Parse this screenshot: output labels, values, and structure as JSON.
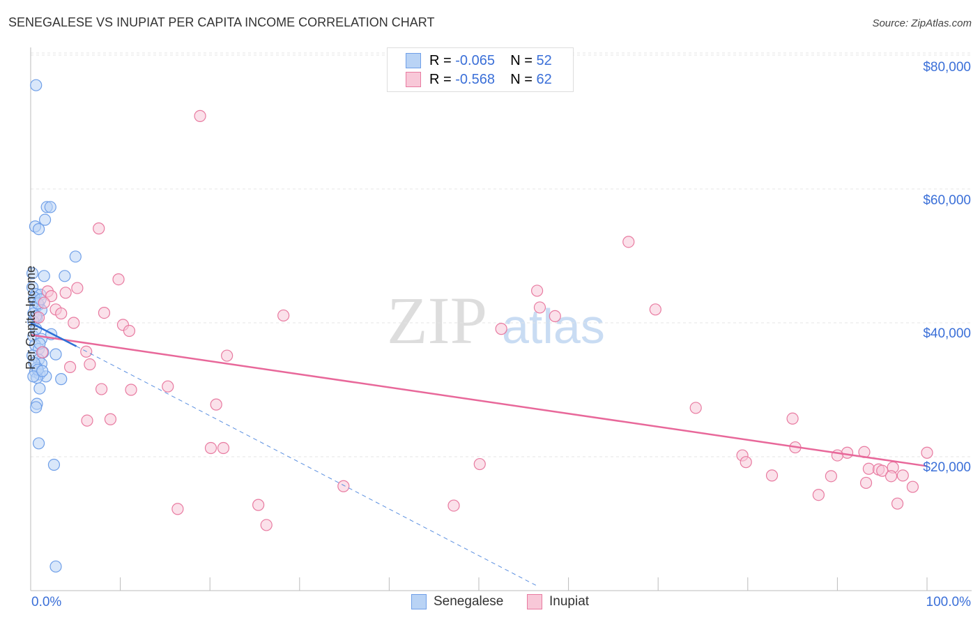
{
  "chart_data": {
    "type": "scatter",
    "title": "SENEGALESE VS INUPIAT PER CAPITA INCOME CORRELATION CHART",
    "source": "Source: ZipAtlas.com",
    "ylabel": "Per Capita Income",
    "xlim": [
      0,
      100
    ],
    "ylim": [
      0,
      82000
    ],
    "x_tick_labels": [
      "0.0%",
      "100.0%"
    ],
    "y_ticks": [
      20000,
      40000,
      60000,
      80000
    ],
    "y_tick_labels": [
      "$20,000",
      "$40,000",
      "$60,000",
      "$80,000"
    ],
    "legend": [
      {
        "name": "Senegalese",
        "r_label": "R = ",
        "r": "-0.065",
        "n_label": "N = ",
        "n": "52",
        "color": "#6f9fe8",
        "fill": "#b9d3f5"
      },
      {
        "name": "Inupiat",
        "r_label": "R = ",
        "r": "-0.568",
        "n_label": "N = ",
        "n": "62",
        "color": "#e87aa0",
        "fill": "#f8c8d8"
      }
    ],
    "series": [
      {
        "name": "Senegalese",
        "points": [
          [
            0.6,
            75.5
          ],
          [
            1.8,
            57.3
          ],
          [
            2.2,
            57.3
          ],
          [
            1.6,
            55.4
          ],
          [
            0.5,
            54.4
          ],
          [
            0.9,
            54.0
          ],
          [
            5.0,
            49.9
          ],
          [
            0.2,
            47.4
          ],
          [
            1.5,
            47.0
          ],
          [
            3.8,
            47.0
          ],
          [
            0.2,
            45.3
          ],
          [
            0.6,
            44.3
          ],
          [
            1.1,
            44.2
          ],
          [
            0.5,
            43.2
          ],
          [
            0.9,
            42.7
          ],
          [
            0.5,
            42.2
          ],
          [
            1.2,
            41.9
          ],
          [
            0.3,
            41.4
          ],
          [
            0.7,
            40.8
          ],
          [
            2.3,
            38.3
          ],
          [
            0.3,
            38.0
          ],
          [
            1.2,
            37.6
          ],
          [
            0.5,
            36.7
          ],
          [
            0.9,
            36.1
          ],
          [
            1.4,
            35.6
          ],
          [
            2.8,
            35.3
          ],
          [
            0.2,
            35.1
          ],
          [
            0.9,
            34.5
          ],
          [
            1.2,
            33.9
          ],
          [
            0.7,
            33.3
          ],
          [
            0.5,
            32.7
          ],
          [
            1.0,
            32.3
          ],
          [
            1.7,
            32.0
          ],
          [
            3.4,
            31.6
          ],
          [
            0.7,
            31.8
          ],
          [
            1.0,
            30.2
          ],
          [
            0.7,
            27.9
          ],
          [
            0.6,
            27.4
          ],
          [
            0.9,
            22.0
          ],
          [
            2.6,
            18.8
          ],
          [
            2.8,
            3.6
          ],
          [
            0.4,
            43.8
          ],
          [
            0.8,
            42.9
          ],
          [
            0.3,
            40.2
          ],
          [
            0.6,
            39.1
          ],
          [
            1.0,
            36.9
          ],
          [
            0.4,
            34.0
          ],
          [
            0.8,
            33.0
          ],
          [
            0.3,
            32.0
          ],
          [
            1.3,
            32.8
          ],
          [
            0.6,
            41.0
          ],
          [
            1.1,
            43.5
          ]
        ],
        "trend": {
          "x": [
            0,
            5.1
          ],
          "y": [
            40.0,
            36.5
          ],
          "dashed_to": [
            56.5,
            0.7
          ]
        }
      },
      {
        "name": "Inupiat",
        "points": [
          [
            18.9,
            70.9
          ],
          [
            7.6,
            54.1
          ],
          [
            66.7,
            52.1
          ],
          [
            9.8,
            46.5
          ],
          [
            5.2,
            45.2
          ],
          [
            1.9,
            44.7
          ],
          [
            3.9,
            44.5
          ],
          [
            2.3,
            44.0
          ],
          [
            56.5,
            44.8
          ],
          [
            69.7,
            42.0
          ],
          [
            56.8,
            42.3
          ],
          [
            2.8,
            42.0
          ],
          [
            8.2,
            41.5
          ],
          [
            3.4,
            41.4
          ],
          [
            28.2,
            41.1
          ],
          [
            58.5,
            41.0
          ],
          [
            0.9,
            40.8
          ],
          [
            4.8,
            40.0
          ],
          [
            10.3,
            39.7
          ],
          [
            11.0,
            38.8
          ],
          [
            52.5,
            39.1
          ],
          [
            6.2,
            35.7
          ],
          [
            1.3,
            35.6
          ],
          [
            21.9,
            35.1
          ],
          [
            4.4,
            33.4
          ],
          [
            6.6,
            33.8
          ],
          [
            15.3,
            30.5
          ],
          [
            7.9,
            30.1
          ],
          [
            11.2,
            30.0
          ],
          [
            20.7,
            27.8
          ],
          [
            74.2,
            27.3
          ],
          [
            6.3,
            25.4
          ],
          [
            8.9,
            25.6
          ],
          [
            85.0,
            25.7
          ],
          [
            20.1,
            21.3
          ],
          [
            21.5,
            21.3
          ],
          [
            85.3,
            21.4
          ],
          [
            79.4,
            20.2
          ],
          [
            91.1,
            20.6
          ],
          [
            93.0,
            20.7
          ],
          [
            100,
            20.6
          ],
          [
            90.0,
            20.2
          ],
          [
            79.8,
            19.2
          ],
          [
            50.1,
            18.9
          ],
          [
            93.5,
            18.2
          ],
          [
            94.6,
            18.1
          ],
          [
            96.2,
            18.4
          ],
          [
            95.0,
            17.9
          ],
          [
            82.7,
            17.2
          ],
          [
            89.3,
            17.1
          ],
          [
            96.0,
            17.1
          ],
          [
            97.3,
            17.2
          ],
          [
            93.2,
            16.1
          ],
          [
            34.9,
            15.6
          ],
          [
            98.4,
            15.5
          ],
          [
            87.9,
            14.3
          ],
          [
            47.2,
            12.7
          ],
          [
            25.4,
            12.8
          ],
          [
            96.7,
            13.0
          ],
          [
            16.4,
            12.2
          ],
          [
            26.3,
            9.8
          ],
          [
            1.5,
            43.0
          ]
        ],
        "trend": {
          "x": [
            0,
            100
          ],
          "y": [
            38.2,
            18.6
          ]
        }
      }
    ],
    "y_units": "thousands USD"
  }
}
